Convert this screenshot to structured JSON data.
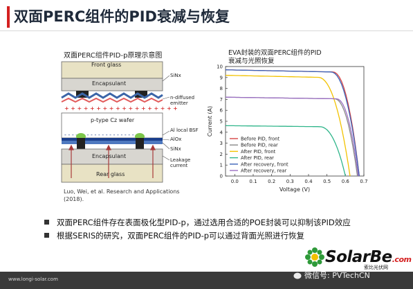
{
  "slide": {
    "title": "双面PERC组件的PID衰减与恢复",
    "accent_color": "#d42020"
  },
  "diagram": {
    "caption": "双面PERC组件PID-p原理示意图",
    "layers": {
      "front_glass": "Front glass",
      "encapsulant_top": "Encapsulant",
      "wafer": "p-type Cz wafer",
      "encapsulant_bottom": "Encapsulant",
      "rear_glass": "Rear glass"
    },
    "annotations": {
      "sinx_top": "SiNx",
      "n_diffused": "n-diffused emitter",
      "al_bsf": "Al local BSF",
      "alox": "AlOx",
      "sinx_bottom": "SiNx",
      "leakage": "Leakage current"
    },
    "reference": "Luo, Wei, et al. Research and Applications (2018)."
  },
  "chart_caption": "EVA封装的双面PERC组件的PID衰减与光照恢复",
  "chart_data": {
    "type": "line",
    "title": "EVA封装的双面PERC组件的PID衰减与光照恢复",
    "xlabel": "Voltage (V)",
    "ylabel": "Current (A)",
    "xlim": [
      -0.05,
      0.7
    ],
    "ylim": [
      0,
      10
    ],
    "xticks": [
      "0.0",
      "0.1",
      "0.2",
      "0.3",
      "0.4",
      "0.5",
      "0.6",
      "0.7"
    ],
    "yticks": [
      "0",
      "1",
      "2",
      "3",
      "4",
      "5",
      "6",
      "7",
      "8",
      "9",
      "10"
    ],
    "legend_position": "bottom-left",
    "grid": false,
    "series": [
      {
        "name": "Before PID, front",
        "color": "#d64545",
        "isc": 9.7,
        "voc": 0.675,
        "knee": 0.53
      },
      {
        "name": "Before PID, rear",
        "color": "#888888",
        "isc": 7.2,
        "voc": 0.665,
        "knee": 0.54
      },
      {
        "name": "After PID, front",
        "color": "#f2c200",
        "isc": 9.2,
        "voc": 0.625,
        "knee": 0.45
      },
      {
        "name": "After PID, rear",
        "color": "#2fb58a",
        "isc": 4.6,
        "voc": 0.6,
        "knee": 0.46
      },
      {
        "name": "After recovery, front",
        "color": "#3a63b8",
        "isc": 9.7,
        "voc": 0.675,
        "knee": 0.52
      },
      {
        "name": "After recovery, rear",
        "color": "#9b6fc3",
        "isc": 7.2,
        "voc": 0.67,
        "knee": 0.55
      }
    ]
  },
  "bullets": [
    "双面PERC组件存在表面极化型PID-p，通过选用合适的POE封装可以抑制该PID效应",
    "根据SERIS的研究，双面PERC组件的PID-p可以通过背面光照进行恢复"
  ],
  "footer": {
    "url": "www.longi-solar.com",
    "wechat": "微信号: PVTechCN",
    "logo_main": "SolarBe",
    "logo_suffix": ".com",
    "logo_sub": "索比光伏网"
  }
}
